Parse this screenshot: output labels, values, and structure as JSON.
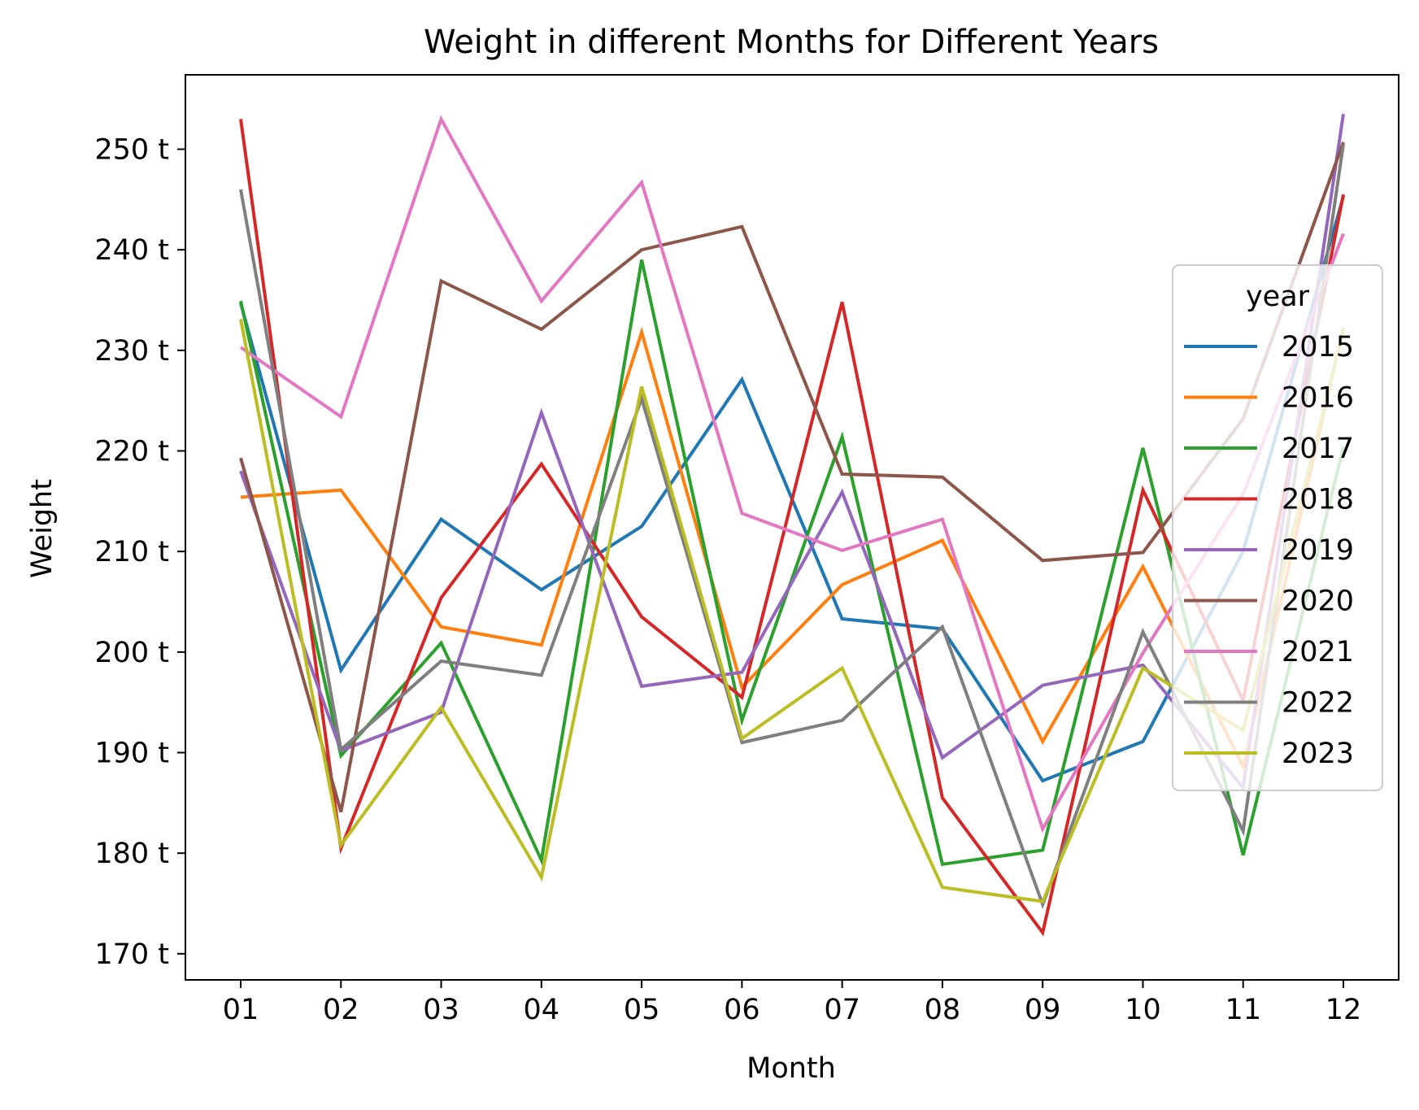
{
  "chart_data": {
    "type": "line",
    "title": "Weight in different Months for Different Years",
    "xlabel": "Month",
    "ylabel": "Weight",
    "categories": [
      "01",
      "02",
      "03",
      "04",
      "05",
      "06",
      "07",
      "08",
      "09",
      "10",
      "11",
      "12"
    ],
    "y_tick_values": [
      170,
      180,
      190,
      200,
      210,
      220,
      230,
      240,
      250
    ],
    "y_tick_suffix": " t",
    "ylim": [
      167.4,
      257.4
    ],
    "grid": false,
    "legend": {
      "title": "year",
      "placement": "center-right"
    },
    "series": [
      {
        "name": "2015",
        "color": "#1f77b4",
        "values": [
          234.7,
          198.2,
          213.2,
          206.2,
          212.5,
          227.1,
          203.3,
          202.3,
          187.2,
          191.1,
          210.0,
          245.3
        ]
      },
      {
        "name": "2016",
        "color": "#ff7f0e",
        "values": [
          215.4,
          216.1,
          202.5,
          200.7,
          231.8,
          196.5,
          206.7,
          211.1,
          191.1,
          208.5,
          188.6,
          232.3
        ]
      },
      {
        "name": "2017",
        "color": "#2ca02c",
        "values": [
          234.9,
          189.7,
          200.9,
          179.3,
          239.0,
          193.2,
          221.4,
          178.9,
          180.3,
          220.3,
          179.8,
          220.4
        ]
      },
      {
        "name": "2018",
        "color": "#d62728",
        "values": [
          253.0,
          180.5,
          205.4,
          218.7,
          203.5,
          195.5,
          234.8,
          185.5,
          172.1,
          216.1,
          195.2,
          245.5
        ]
      },
      {
        "name": "2019",
        "color": "#9467bd",
        "values": [
          218.0,
          190.2,
          194.0,
          223.8,
          196.6,
          198.0,
          215.9,
          189.5,
          196.7,
          198.7,
          186.5,
          253.5
        ]
      },
      {
        "name": "2020",
        "color": "#8c564b",
        "values": [
          219.3,
          184.1,
          236.9,
          232.1,
          240.0,
          242.3,
          217.7,
          217.4,
          209.1,
          209.9,
          223.2,
          250.7
        ]
      },
      {
        "name": "2021",
        "color": "#e377c2",
        "values": [
          230.3,
          223.4,
          253.0,
          234.9,
          246.7,
          213.8,
          210.1,
          213.2,
          182.4,
          199.9,
          215.7,
          241.6
        ]
      },
      {
        "name": "2022",
        "color": "#7f7f7f",
        "values": [
          246.0,
          190.3,
          199.1,
          197.7,
          225.2,
          191.0,
          193.2,
          202.5,
          174.9,
          202.0,
          182.2,
          250.5
        ]
      },
      {
        "name": "2023",
        "color": "#bcbd22",
        "values": [
          233.1,
          180.8,
          194.5,
          177.6,
          226.4,
          191.4,
          198.4,
          176.6,
          175.2,
          198.4,
          192.2,
          232.0
        ]
      }
    ]
  }
}
